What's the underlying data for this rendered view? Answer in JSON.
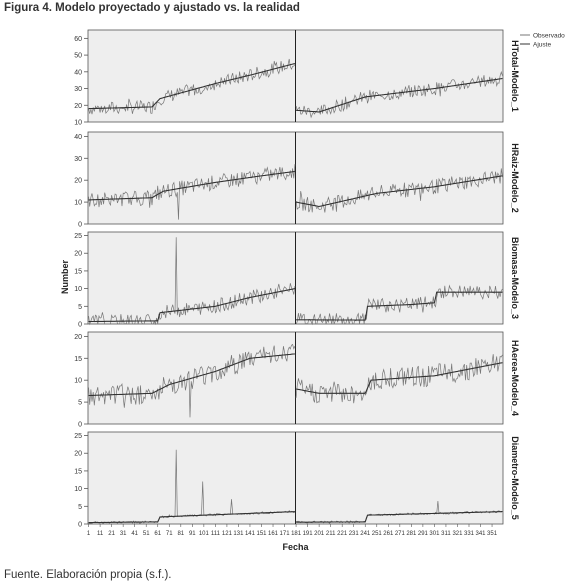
{
  "figure": {
    "title": "Figura 4. Modelo proyectado y ajustado vs. la realidad",
    "source": "Fuente. Elaboración propia (s.f.)."
  },
  "chart_data": {
    "type": "line",
    "xlabel": "Fecha",
    "ylabel": "Number",
    "legend": {
      "placement": "top-right",
      "entries": [
        {
          "name": "Observado",
          "color": "#777777"
        },
        {
          "name": "Ajuste",
          "color": "#333333"
        }
      ]
    },
    "x_tick_labels": [
      "1",
      "11",
      "21",
      "31",
      "41",
      "51",
      "61",
      "71",
      "81",
      "91",
      "101",
      "111",
      "121",
      "131",
      "141",
      "151",
      "161",
      "171",
      "181",
      "191",
      "201",
      "211",
      "221",
      "231",
      "241",
      "251",
      "261",
      "271",
      "281",
      "291",
      "301",
      "311",
      "321",
      "331",
      "341",
      "351"
    ],
    "n_points": 360,
    "split_index": 180,
    "grid": false,
    "panel_background": "#eeeeee",
    "panels": [
      {
        "label": "HTotal-Modelo_1",
        "ylim": [
          10,
          65
        ],
        "yticks": [
          10,
          20,
          30,
          40,
          50,
          60
        ],
        "anchors": [
          [
            0,
            18
          ],
          [
            55,
            19
          ],
          [
            62,
            24
          ],
          [
            110,
            33
          ],
          [
            140,
            38
          ],
          [
            179,
            45
          ],
          [
            180,
            17
          ],
          [
            200,
            16
          ],
          [
            240,
            25
          ],
          [
            300,
            30
          ],
          [
            359,
            36
          ]
        ],
        "noise": 4,
        "spikes": []
      },
      {
        "label": "HRaiz-Modelo_2",
        "ylim": [
          0,
          42
        ],
        "yticks": [
          0,
          10,
          20,
          30,
          40
        ],
        "anchors": [
          [
            0,
            11
          ],
          [
            55,
            12
          ],
          [
            65,
            15
          ],
          [
            110,
            19
          ],
          [
            150,
            22
          ],
          [
            179,
            24
          ],
          [
            180,
            10
          ],
          [
            200,
            8
          ],
          [
            250,
            14
          ],
          [
            300,
            17
          ],
          [
            359,
            22
          ]
        ],
        "noise": 3.5,
        "spikes": [
          [
            78,
            2
          ]
        ]
      },
      {
        "label": "Biomasa-Modelo_3",
        "ylim": [
          0,
          26
        ],
        "yticks": [
          0,
          5,
          10,
          15,
          20,
          25
        ],
        "anchors": [
          [
            0,
            0.7
          ],
          [
            60,
            0.9
          ],
          [
            62,
            3.2
          ],
          [
            110,
            5
          ],
          [
            140,
            7.5
          ],
          [
            179,
            10
          ],
          [
            180,
            1.2
          ],
          [
            240,
            1.1
          ],
          [
            242,
            5
          ],
          [
            280,
            5.5
          ],
          [
            300,
            6
          ],
          [
            302,
            9
          ],
          [
            359,
            9
          ]
        ],
        "noise": 2,
        "spikes": [
          [
            76,
            24.5
          ]
        ]
      },
      {
        "label": "HAerea-Modelo_4",
        "ylim": [
          0,
          21
        ],
        "yticks": [
          0,
          5,
          10,
          15,
          20
        ],
        "anchors": [
          [
            0,
            6.5
          ],
          [
            55,
            7
          ],
          [
            70,
            9
          ],
          [
            110,
            12
          ],
          [
            140,
            15
          ],
          [
            179,
            16
          ],
          [
            180,
            8
          ],
          [
            200,
            7
          ],
          [
            240,
            7
          ],
          [
            245,
            10
          ],
          [
            300,
            11
          ],
          [
            359,
            14
          ]
        ],
        "noise": 2.5,
        "spikes": [
          [
            88,
            1.5
          ]
        ]
      },
      {
        "label": "Diametro-Modelo_5",
        "ylim": [
          0,
          26
        ],
        "yticks": [
          0,
          5,
          10,
          15,
          20,
          25
        ],
        "anchors": [
          [
            0,
            0.4
          ],
          [
            60,
            0.6
          ],
          [
            62,
            2
          ],
          [
            179,
            3.5
          ],
          [
            180,
            0.5
          ],
          [
            240,
            0.6
          ],
          [
            242,
            2.5
          ],
          [
            359,
            3.5
          ]
        ],
        "noise": 0.3,
        "spikes": [
          [
            76,
            21
          ],
          [
            99,
            12
          ],
          [
            124,
            7
          ],
          [
            303,
            6.5
          ]
        ]
      }
    ]
  }
}
